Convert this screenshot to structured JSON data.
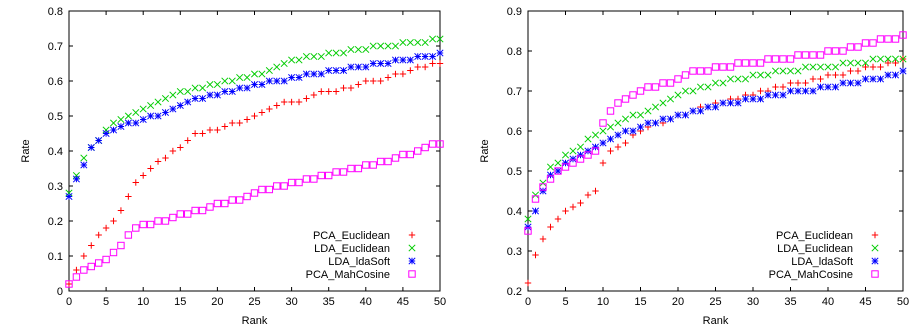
{
  "chart_data": [
    {
      "type": "scatter",
      "title": "",
      "xlabel": "Rank",
      "ylabel": "Rate",
      "xlim": [
        0,
        50
      ],
      "ylim": [
        0,
        0.8
      ],
      "xticks": [
        "0",
        "5",
        "10",
        "15",
        "20",
        "25",
        "30",
        "35",
        "40",
        "45",
        "50"
      ],
      "yticks": [
        "0",
        "0.1",
        "0.2",
        "0.3",
        "0.4",
        "0.5",
        "0.6",
        "0.7",
        "0.8"
      ],
      "x": [
        0,
        1,
        2,
        3,
        4,
        5,
        6,
        7,
        8,
        9,
        10,
        11,
        12,
        13,
        14,
        15,
        16,
        17,
        18,
        19,
        20,
        21,
        22,
        23,
        24,
        25,
        26,
        27,
        28,
        29,
        30,
        31,
        32,
        33,
        34,
        35,
        36,
        37,
        38,
        39,
        40,
        41,
        42,
        43,
        44,
        45,
        46,
        47,
        48,
        49,
        50
      ],
      "grid": false,
      "legend_position": "bottom-right",
      "series": [
        {
          "name": "PCA_Euclidean",
          "color": "#ff0000",
          "marker": "plus",
          "values": [
            0.02,
            0.06,
            0.1,
            0.13,
            0.16,
            0.18,
            0.2,
            0.23,
            0.27,
            0.31,
            0.33,
            0.35,
            0.37,
            0.38,
            0.4,
            0.41,
            0.43,
            0.45,
            0.45,
            0.46,
            0.46,
            0.47,
            0.48,
            0.48,
            0.49,
            0.5,
            0.51,
            0.52,
            0.53,
            0.54,
            0.54,
            0.54,
            0.55,
            0.56,
            0.57,
            0.57,
            0.57,
            0.58,
            0.58,
            0.59,
            0.6,
            0.6,
            0.6,
            0.61,
            0.62,
            0.62,
            0.63,
            0.64,
            0.64,
            0.65,
            0.65
          ]
        },
        {
          "name": "LDA_Euclidean",
          "color": "#00cc00",
          "marker": "cross",
          "values": [
            0.28,
            0.33,
            0.38,
            0.41,
            0.43,
            0.46,
            0.48,
            0.49,
            0.5,
            0.51,
            0.52,
            0.53,
            0.54,
            0.55,
            0.56,
            0.57,
            0.57,
            0.58,
            0.58,
            0.59,
            0.59,
            0.6,
            0.6,
            0.61,
            0.61,
            0.62,
            0.62,
            0.63,
            0.64,
            0.65,
            0.66,
            0.66,
            0.67,
            0.67,
            0.67,
            0.68,
            0.68,
            0.68,
            0.69,
            0.69,
            0.69,
            0.7,
            0.7,
            0.7,
            0.7,
            0.71,
            0.71,
            0.71,
            0.71,
            0.72,
            0.72
          ]
        },
        {
          "name": "LDA_ldaSoft",
          "color": "#0000ff",
          "marker": "star",
          "values": [
            0.27,
            0.32,
            0.36,
            0.41,
            0.43,
            0.45,
            0.46,
            0.47,
            0.48,
            0.48,
            0.49,
            0.5,
            0.5,
            0.51,
            0.52,
            0.53,
            0.54,
            0.55,
            0.55,
            0.56,
            0.56,
            0.57,
            0.57,
            0.58,
            0.58,
            0.59,
            0.59,
            0.6,
            0.6,
            0.6,
            0.61,
            0.61,
            0.62,
            0.62,
            0.62,
            0.63,
            0.63,
            0.63,
            0.64,
            0.64,
            0.64,
            0.65,
            0.65,
            0.65,
            0.66,
            0.66,
            0.66,
            0.67,
            0.67,
            0.67,
            0.68
          ]
        },
        {
          "name": "PCA_MahCosine",
          "color": "#ff00ff",
          "marker": "square",
          "values": [
            0.02,
            0.04,
            0.06,
            0.07,
            0.08,
            0.09,
            0.11,
            0.13,
            0.16,
            0.18,
            0.19,
            0.19,
            0.2,
            0.2,
            0.21,
            0.22,
            0.22,
            0.23,
            0.23,
            0.24,
            0.25,
            0.25,
            0.26,
            0.26,
            0.27,
            0.28,
            0.29,
            0.29,
            0.3,
            0.3,
            0.31,
            0.31,
            0.32,
            0.32,
            0.33,
            0.33,
            0.34,
            0.34,
            0.35,
            0.35,
            0.36,
            0.36,
            0.37,
            0.37,
            0.38,
            0.39,
            0.39,
            0.4,
            0.41,
            0.42,
            0.42
          ]
        }
      ]
    },
    {
      "type": "scatter",
      "title": "",
      "xlabel": "Rank",
      "ylabel": "Rate",
      "xlim": [
        0,
        50
      ],
      "ylim": [
        0.2,
        0.9
      ],
      "xticks": [
        "0",
        "5",
        "10",
        "15",
        "20",
        "25",
        "30",
        "35",
        "40",
        "45",
        "50"
      ],
      "yticks": [
        "0.2",
        "0.3",
        "0.4",
        "0.5",
        "0.6",
        "0.7",
        "0.8",
        "0.9"
      ],
      "x": [
        0,
        1,
        2,
        3,
        4,
        5,
        6,
        7,
        8,
        9,
        10,
        11,
        12,
        13,
        14,
        15,
        16,
        17,
        18,
        19,
        20,
        21,
        22,
        23,
        24,
        25,
        26,
        27,
        28,
        29,
        30,
        31,
        32,
        33,
        34,
        35,
        36,
        37,
        38,
        39,
        40,
        41,
        42,
        43,
        44,
        45,
        46,
        47,
        48,
        49,
        50
      ],
      "grid": false,
      "legend_position": "bottom-right",
      "series": [
        {
          "name": "PCA_Euclidean",
          "color": "#ff0000",
          "marker": "plus",
          "values": [
            0.22,
            0.29,
            0.33,
            0.36,
            0.38,
            0.4,
            0.41,
            0.42,
            0.44,
            0.45,
            0.52,
            0.55,
            0.56,
            0.57,
            0.59,
            0.6,
            0.61,
            0.62,
            0.62,
            0.63,
            0.64,
            0.64,
            0.65,
            0.66,
            0.66,
            0.67,
            0.67,
            0.68,
            0.68,
            0.69,
            0.69,
            0.7,
            0.7,
            0.71,
            0.71,
            0.72,
            0.72,
            0.72,
            0.73,
            0.73,
            0.74,
            0.74,
            0.74,
            0.75,
            0.75,
            0.76,
            0.76,
            0.76,
            0.77,
            0.77,
            0.78
          ]
        },
        {
          "name": "LDA_Euclidean",
          "color": "#00cc00",
          "marker": "cross",
          "values": [
            0.38,
            0.44,
            0.47,
            0.51,
            0.52,
            0.54,
            0.55,
            0.56,
            0.58,
            0.59,
            0.6,
            0.61,
            0.62,
            0.63,
            0.64,
            0.64,
            0.65,
            0.66,
            0.67,
            0.68,
            0.69,
            0.7,
            0.7,
            0.71,
            0.71,
            0.72,
            0.72,
            0.73,
            0.73,
            0.73,
            0.74,
            0.74,
            0.74,
            0.75,
            0.75,
            0.75,
            0.75,
            0.76,
            0.76,
            0.76,
            0.76,
            0.76,
            0.77,
            0.77,
            0.77,
            0.77,
            0.78,
            0.78,
            0.78,
            0.78,
            0.78
          ]
        },
        {
          "name": "LDA_ldaSoft",
          "color": "#0000ff",
          "marker": "star",
          "values": [
            0.36,
            0.4,
            0.45,
            0.49,
            0.5,
            0.52,
            0.53,
            0.54,
            0.55,
            0.56,
            0.57,
            0.58,
            0.59,
            0.6,
            0.6,
            0.61,
            0.62,
            0.62,
            0.63,
            0.63,
            0.64,
            0.64,
            0.65,
            0.65,
            0.66,
            0.66,
            0.67,
            0.67,
            0.67,
            0.68,
            0.68,
            0.68,
            0.69,
            0.69,
            0.69,
            0.7,
            0.7,
            0.7,
            0.7,
            0.71,
            0.71,
            0.71,
            0.72,
            0.72,
            0.72,
            0.73,
            0.73,
            0.73,
            0.74,
            0.74,
            0.75
          ]
        },
        {
          "name": "PCA_MahCosine",
          "color": "#ff00ff",
          "marker": "square",
          "values": [
            0.35,
            0.43,
            0.46,
            0.48,
            0.5,
            0.51,
            0.52,
            0.53,
            0.54,
            0.55,
            0.62,
            0.65,
            0.67,
            0.68,
            0.69,
            0.7,
            0.71,
            0.71,
            0.72,
            0.72,
            0.73,
            0.74,
            0.75,
            0.75,
            0.75,
            0.76,
            0.76,
            0.76,
            0.77,
            0.77,
            0.77,
            0.77,
            0.78,
            0.78,
            0.78,
            0.78,
            0.79,
            0.79,
            0.79,
            0.79,
            0.8,
            0.8,
            0.8,
            0.81,
            0.81,
            0.82,
            0.82,
            0.83,
            0.83,
            0.83,
            0.84
          ]
        }
      ]
    }
  ]
}
